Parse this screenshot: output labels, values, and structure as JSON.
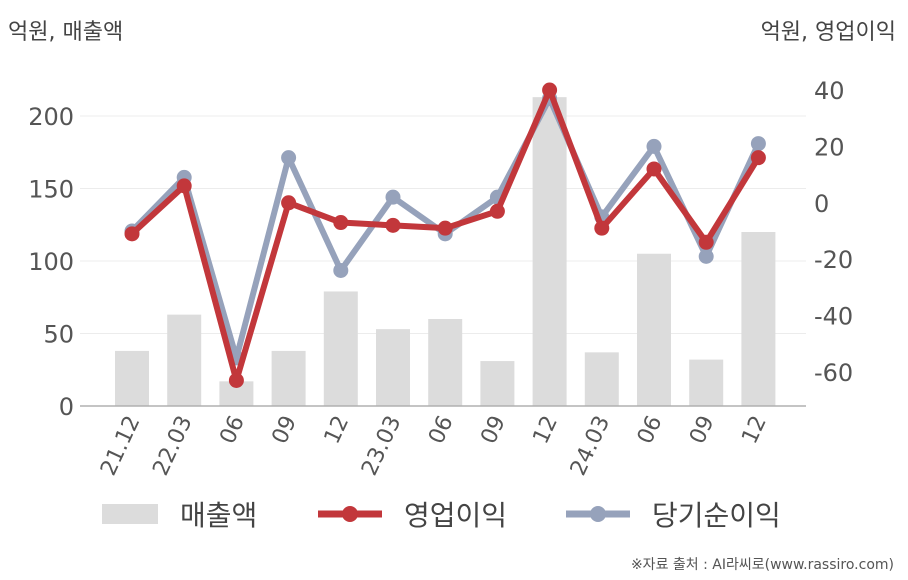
{
  "labels": {
    "left_unit": "억원, 매출액",
    "right_unit": "억원, 영업이익",
    "source": "※자료 출처 : AI라씨로(www.rassiro.com)"
  },
  "colors": {
    "revenue": "#dcdcdc",
    "operating_profit": "#c2373b",
    "net_income": "#96a2bb"
  },
  "chart_data": {
    "type": "bar",
    "categories": [
      "21.12",
      "22.03",
      "06",
      "09",
      "12",
      "23.03",
      "06",
      "09",
      "12",
      "24.03",
      "06",
      "09",
      "12"
    ],
    "y_left": {
      "ylim": [
        0,
        200
      ],
      "ticks": [
        0,
        50,
        100,
        150,
        200
      ]
    },
    "y_right": {
      "ylim": [
        -60,
        40
      ],
      "ticks": [
        -60,
        -40,
        -20,
        0,
        20,
        40
      ]
    },
    "series": [
      {
        "name": "매출액",
        "type": "bar",
        "axis": "left",
        "values": [
          38,
          63,
          17,
          38,
          79,
          53,
          60,
          31,
          213,
          37,
          105,
          32,
          120
        ]
      },
      {
        "name": "영업이익",
        "type": "line",
        "axis": "right",
        "values": [
          -11,
          6,
          -63,
          0,
          -7,
          -8,
          -9,
          -3,
          40,
          -9,
          12,
          -14,
          16
        ]
      },
      {
        "name": "당기순이익",
        "type": "line",
        "axis": "right",
        "values": [
          -10,
          9,
          -55,
          16,
          -24,
          2,
          -11,
          2,
          37,
          -5,
          20,
          -19,
          21
        ]
      }
    ],
    "grid": true,
    "legend": "bottom"
  }
}
